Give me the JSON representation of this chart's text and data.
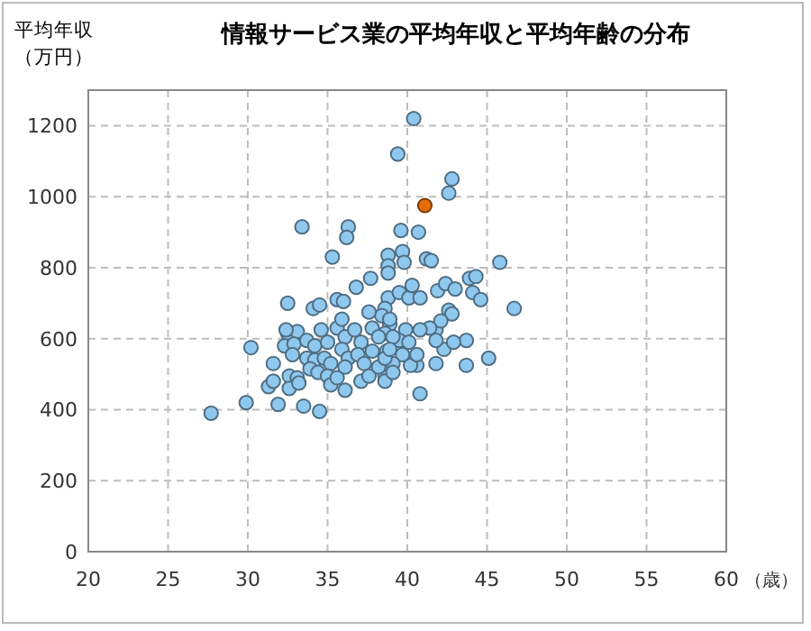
{
  "chart_data": {
    "type": "scatter",
    "title": "情報サービス業の平均年収と平均年齢の分布",
    "ylabel": "平均年収（万円）",
    "xlabel": "（歳）",
    "xlim": [
      20,
      60
    ],
    "xticks": [
      20,
      25,
      30,
      35,
      40,
      45,
      50,
      55,
      60
    ],
    "ylim": [
      0,
      1300
    ],
    "yticks": [
      0,
      200,
      400,
      600,
      800,
      1000,
      1200
    ],
    "grid": true,
    "marker": "circle",
    "series": [
      {
        "color": "#8fc8ef",
        "x": [
          40.4,
          39.4,
          42.8,
          42.6,
          33.4,
          36.3,
          36.2,
          39.6,
          40.7,
          35.3,
          38.8,
          39.7,
          39.8,
          41.2,
          41.5,
          45.8,
          38.8,
          37.7,
          36.8,
          32.5,
          34.1,
          34.5,
          35.6,
          36.0,
          38.8,
          30.2,
          31.6,
          27.7,
          29.9,
          31.3,
          31.6,
          31.9,
          33.5,
          34.5,
          32.5,
          33.1,
          38.8,
          43.9,
          44.3,
          41.9,
          42.4,
          43.0,
          39.5,
          40.1,
          40.3,
          40.8,
          44.1,
          44.6,
          42.6,
          42.8,
          46.7,
          43.7,
          45.1,
          43.7,
          41.8,
          40.8,
          40.6,
          40.2,
          41.8,
          42.3,
          42.9,
          42.1,
          41.4,
          40.8,
          41.8,
          39.9,
          39.5,
          40.1,
          40.6,
          39.7,
          38.6,
          38.6,
          38.7,
          39.1,
          38.6,
          38.4,
          38.9,
          38.6,
          32.4,
          32.3,
          32.9,
          32.8,
          32.6,
          33.1,
          32.6,
          33.2,
          33.7,
          34.2,
          33.7,
          34.2,
          33.9,
          34.4,
          34.6,
          35.0,
          34.8,
          35.2,
          35.0,
          35.2,
          35.6,
          35.6,
          35.9,
          36.1,
          35.9,
          36.3,
          36.1,
          36.1,
          36.7,
          37.1,
          36.9,
          37.3,
          37.1,
          37.6,
          37.6,
          37.8,
          38.2,
          37.8,
          38.2,
          38.6,
          38.9,
          39.1,
          38.9,
          39.1
        ],
        "values": [
          1220,
          1120,
          1050,
          1010,
          915,
          915,
          885,
          905,
          900,
          830,
          835,
          845,
          815,
          825,
          820,
          815,
          805,
          770,
          745,
          700,
          685,
          695,
          710,
          705,
          715,
          575,
          530,
          390,
          420,
          465,
          480,
          415,
          410,
          395,
          615,
          620,
          785,
          770,
          775,
          735,
          755,
          740,
          730,
          715,
          750,
          715,
          730,
          710,
          680,
          670,
          685,
          595,
          545,
          525,
          530,
          445,
          525,
          525,
          625,
          570,
          590,
          650,
          630,
          625,
          595,
          625,
          595,
          590,
          555,
          555,
          495,
          480,
          565,
          530,
          685,
          665,
          640,
          615,
          625,
          580,
          585,
          555,
          495,
          490,
          460,
          475,
          595,
          580,
          545,
          540,
          515,
          505,
          625,
          590,
          545,
          530,
          495,
          470,
          490,
          630,
          655,
          605,
          570,
          545,
          520,
          455,
          625,
          590,
          555,
          530,
          480,
          495,
          675,
          630,
          605,
          565,
          520,
          545,
          655,
          605,
          570,
          505
        ]
      },
      {
        "color": "#e36c09",
        "x": [
          41.1
        ],
        "values": [
          975
        ]
      }
    ]
  }
}
